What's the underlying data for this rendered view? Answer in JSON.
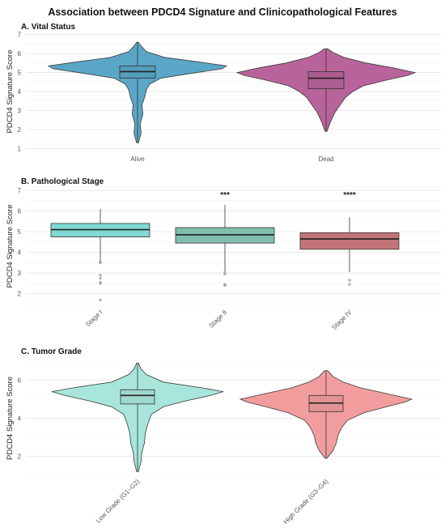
{
  "title": "Association between PDCD4 Signature and Clinicopathological Features",
  "chart_data": [
    {
      "type": "violin",
      "panel_title": "A. Vital Status",
      "ylabel": "PDCD4 Signature Score",
      "ylim": [
        0.8,
        7.2
      ],
      "yticks": [
        1,
        2,
        3,
        4,
        5,
        6,
        7
      ],
      "grid": true,
      "categories": [
        "Alive",
        "Dead"
      ],
      "colors": [
        "#5aa6c6",
        "#b8649a"
      ],
      "groups": [
        {
          "name": "Alive",
          "min": 1.3,
          "q1": 4.7,
          "median": 5.05,
          "q3": 5.35,
          "max": 6.6,
          "density": [
            [
              1.3,
              0.01
            ],
            [
              1.8,
              0.04
            ],
            [
              2.3,
              0.03
            ],
            [
              2.8,
              0.06
            ],
            [
              3.3,
              0.05
            ],
            [
              3.7,
              0.08
            ],
            [
              4.1,
              0.1
            ],
            [
              4.4,
              0.14
            ],
            [
              4.7,
              0.26
            ],
            [
              4.95,
              0.6
            ],
            [
              5.2,
              0.95
            ],
            [
              5.35,
              1.0
            ],
            [
              5.55,
              0.7
            ],
            [
              5.8,
              0.3
            ],
            [
              6.1,
              0.1
            ],
            [
              6.4,
              0.04
            ],
            [
              6.6,
              0.01
            ]
          ]
        },
        {
          "name": "Dead",
          "min": 1.9,
          "q1": 4.15,
          "median": 4.7,
          "q3": 5.05,
          "max": 6.2,
          "density": [
            [
              1.9,
              0.01
            ],
            [
              2.4,
              0.05
            ],
            [
              2.9,
              0.1
            ],
            [
              3.3,
              0.16
            ],
            [
              3.7,
              0.22
            ],
            [
              4.0,
              0.3
            ],
            [
              4.3,
              0.42
            ],
            [
              4.6,
              0.68
            ],
            [
              4.85,
              0.92
            ],
            [
              5.0,
              1.0
            ],
            [
              5.25,
              0.75
            ],
            [
              5.5,
              0.45
            ],
            [
              5.8,
              0.2
            ],
            [
              6.05,
              0.08
            ],
            [
              6.25,
              0.02
            ]
          ]
        }
      ],
      "annotations": [
        "",
        ""
      ]
    },
    {
      "type": "box",
      "panel_title": "B. Pathological Stage",
      "ylabel": "PDCD4 Signature Score",
      "ylim": [
        1.4,
        7.2
      ],
      "yticks": [
        2,
        3,
        4,
        5,
        6,
        7
      ],
      "grid": true,
      "categories": [
        "Stage I",
        "Stage II",
        "Stage IV"
      ],
      "colors": [
        "#7fd8d3",
        "#7fbfae",
        "#c27479"
      ],
      "groups": [
        {
          "name": "Stage I",
          "min": 3.6,
          "q1": 4.75,
          "median": 5.1,
          "q3": 5.4,
          "max": 6.1,
          "outliers": [
            3.55,
            3.5,
            2.9,
            2.75,
            2.55,
            2.5,
            1.7
          ]
        },
        {
          "name": "Stage II",
          "min": 3.1,
          "q1": 4.45,
          "median": 4.85,
          "q3": 5.2,
          "max": 6.3,
          "outliers": [
            3.05,
            2.95,
            2.45,
            2.4
          ]
        },
        {
          "name": "Stage IV",
          "min": 3.05,
          "q1": 4.15,
          "median": 4.65,
          "q3": 4.95,
          "max": 5.7,
          "outliers": [
            2.65,
            2.45
          ]
        }
      ],
      "annotations": [
        "",
        "***",
        "****"
      ]
    },
    {
      "type": "violin",
      "panel_title": "C. Tumor Grade",
      "ylabel": "PDCD4 Signature Score",
      "ylim": [
        1.0,
        7.0
      ],
      "yticks": [
        2,
        4,
        6
      ],
      "grid": true,
      "categories": [
        "Low Grade (G1–G2)",
        "High Grade (G3–G4)"
      ],
      "colors": [
        "#a8e6dc",
        "#f29d9d"
      ],
      "groups": [
        {
          "name": "Low Grade (G1–G2)",
          "min": 1.2,
          "q1": 4.75,
          "median": 5.2,
          "q3": 5.5,
          "max": 6.9,
          "density": [
            [
              1.2,
              0.01
            ],
            [
              1.7,
              0.04
            ],
            [
              2.2,
              0.05
            ],
            [
              2.7,
              0.08
            ],
            [
              3.2,
              0.09
            ],
            [
              3.7,
              0.12
            ],
            [
              4.2,
              0.16
            ],
            [
              4.6,
              0.3
            ],
            [
              4.9,
              0.55
            ],
            [
              5.2,
              0.85
            ],
            [
              5.4,
              1.0
            ],
            [
              5.6,
              0.75
            ],
            [
              5.9,
              0.3
            ],
            [
              6.3,
              0.1
            ],
            [
              6.6,
              0.04
            ],
            [
              6.9,
              0.01
            ]
          ]
        },
        {
          "name": "High Grade (G3–G4)",
          "min": 1.9,
          "q1": 4.35,
          "median": 4.8,
          "q3": 5.2,
          "max": 6.5,
          "density": [
            [
              1.9,
              0.01
            ],
            [
              2.3,
              0.08
            ],
            [
              2.7,
              0.12
            ],
            [
              3.1,
              0.14
            ],
            [
              3.5,
              0.18
            ],
            [
              3.9,
              0.25
            ],
            [
              4.3,
              0.45
            ],
            [
              4.6,
              0.7
            ],
            [
              4.85,
              0.92
            ],
            [
              5.0,
              1.0
            ],
            [
              5.3,
              0.7
            ],
            [
              5.6,
              0.4
            ],
            [
              5.9,
              0.2
            ],
            [
              6.2,
              0.08
            ],
            [
              6.5,
              0.02
            ]
          ]
        }
      ],
      "annotations": [
        "",
        ""
      ]
    }
  ]
}
